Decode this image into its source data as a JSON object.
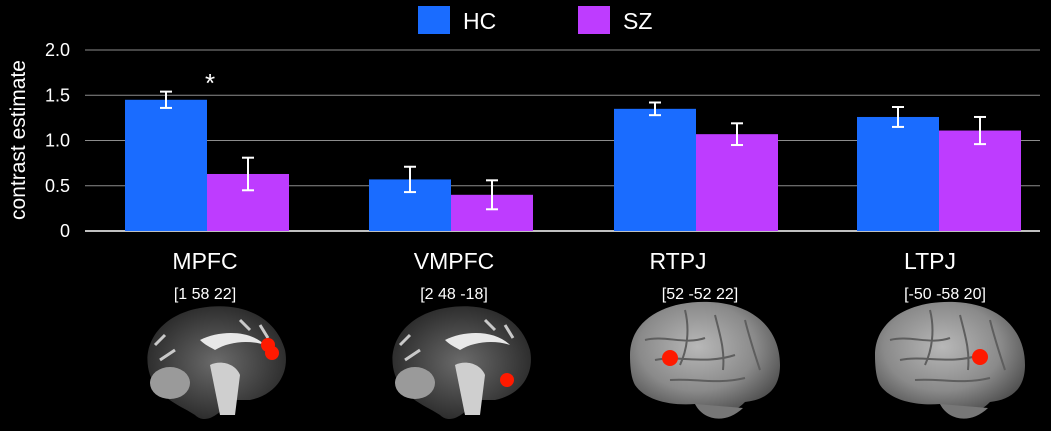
{
  "chart_data": {
    "type": "bar",
    "categories": [
      "MPFC",
      "VMPFC",
      "RTPJ",
      "LTPJ"
    ],
    "series": [
      {
        "name": "HC",
        "color": "#1a6cff",
        "values": [
          1.45,
          0.57,
          1.35,
          1.26
        ],
        "errors": [
          0.09,
          0.14,
          0.07,
          0.11
        ]
      },
      {
        "name": "SZ",
        "color": "#be3cff",
        "values": [
          0.63,
          0.4,
          1.07,
          1.11
        ],
        "errors": [
          0.18,
          0.16,
          0.12,
          0.15
        ]
      }
    ],
    "ylabel": "contrast estimate",
    "ylim": [
      0,
      2.0
    ],
    "yticks": [
      "0",
      "0.5",
      "1.0",
      "1.5",
      "2.0"
    ],
    "grid": true,
    "legend_position": "top-center",
    "annotation": "*"
  },
  "regions": [
    {
      "name": "MPFC",
      "coords": "[1 58 22]",
      "view": "medial",
      "marker": "mpfc"
    },
    {
      "name": "VMPFC",
      "coords": "[2 48 -18]",
      "view": "medial",
      "marker": "vmpfc"
    },
    {
      "name": "RTPJ",
      "coords": "[52 -52 22]",
      "view": "lateral",
      "marker": "tpj"
    },
    {
      "name": "LTPJ",
      "coords": "[-50 -58 20]",
      "view": "lateral",
      "marker": "tpj"
    }
  ],
  "colors": {
    "background": "#000000",
    "marker": "#ff1a00",
    "axis": "#ffffff"
  }
}
